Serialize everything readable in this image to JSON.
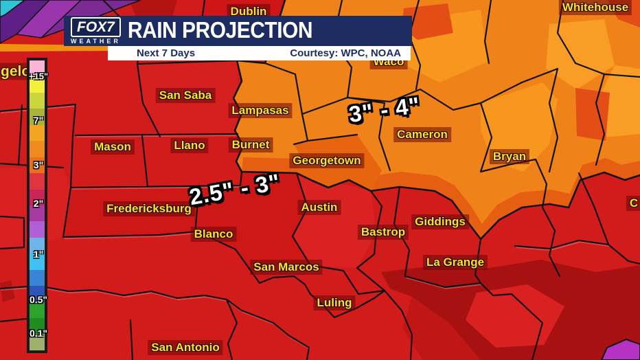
{
  "header": {
    "brand": "FOX7",
    "brand_sub": "WEATHER",
    "title": "RAIN PROJECTION",
    "subtitle_left": "Next 7 Days",
    "subtitle_right": "Courtesy: WPC, NOAA"
  },
  "legend": {
    "unit": "inches",
    "tick_labels": [
      "+15\"",
      "7\"",
      "3\"",
      "2\"",
      "1\"",
      "0.5\"",
      "0.1\""
    ],
    "colors": [
      "#f8b5d8",
      "#f3ef3a",
      "#ccd63c",
      "#a9b239",
      "#f5a41f",
      "#f18a1d",
      "#ec6f1a",
      "#df3540",
      "#cb2458",
      "#a8399f",
      "#b15fd4",
      "#6fb3e8",
      "#3ec2ef",
      "#3a84d6",
      "#2c55b8",
      "#2da32d",
      "#1e8c1e",
      "#9eb06b"
    ]
  },
  "annotations": [
    {
      "text": "3\" - 4\""
    },
    {
      "text": "2.5\" - 3\""
    }
  ],
  "map": {
    "cities": [
      {
        "name": "Dublin"
      },
      {
        "name": "Whitehouse"
      },
      {
        "name": "Waco"
      },
      {
        "name": "San Saba"
      },
      {
        "name": "Lampasas"
      },
      {
        "name": "Cameron"
      },
      {
        "name": "Mason"
      },
      {
        "name": "Llano"
      },
      {
        "name": "Burnet"
      },
      {
        "name": "Georgetown"
      },
      {
        "name": "Bryan"
      },
      {
        "name": "Fredericksburg"
      },
      {
        "name": "Austin"
      },
      {
        "name": "Giddings"
      },
      {
        "name": "Bastrop"
      },
      {
        "name": "Blanco"
      },
      {
        "name": "La Grange"
      },
      {
        "name": "San Marcos"
      },
      {
        "name": "Luling"
      },
      {
        "name": "San Antonio"
      },
      {
        "name": "gelo"
      },
      {
        "name": "C"
      }
    ],
    "colors": {
      "base_red": "#d21c1c",
      "orange_zone": "#f0821a",
      "dark_orange_band": "#e55e11",
      "dark_red_zone": "#a81111",
      "purple_corner": "#9a35ad",
      "legend_border": "#1a1a1a",
      "banner_navy": "#1d2c60",
      "label_yellow": "#f2e535"
    }
  }
}
